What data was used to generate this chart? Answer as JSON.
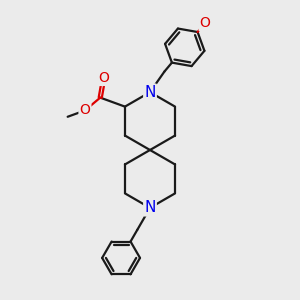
{
  "background_color": "#ebebeb",
  "bond_color": "#1a1a1a",
  "N_color": "#0000ee",
  "O_color": "#dd0000",
  "lw": 1.6,
  "figsize": [
    3.0,
    3.0
  ],
  "dpi": 100,
  "xlim": [
    -2.4,
    2.4
  ],
  "ylim": [
    -2.8,
    2.8
  ]
}
